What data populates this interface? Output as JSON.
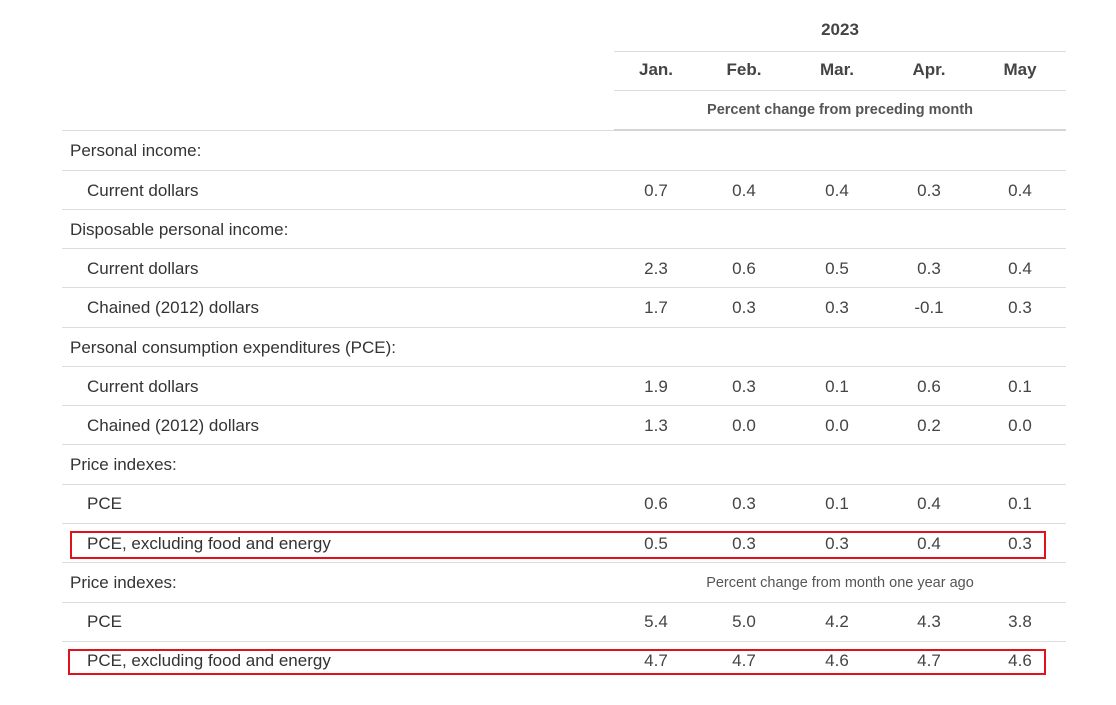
{
  "header": {
    "year": "2023",
    "months": [
      "Jan.",
      "Feb.",
      "Mar.",
      "Apr.",
      "May"
    ],
    "subheading_monthly": "Percent change from preceding month",
    "subheading_yearly": "Percent change from month one year ago"
  },
  "rows": {
    "personal_income": {
      "label": "Personal income:"
    },
    "pi_current": {
      "label": "Current dollars",
      "values": [
        "0.7",
        "0.4",
        "0.4",
        "0.3",
        "0.4"
      ]
    },
    "dpi": {
      "label": "Disposable personal income:"
    },
    "dpi_current": {
      "label": "Current dollars",
      "values": [
        "2.3",
        "0.6",
        "0.5",
        "0.3",
        "0.4"
      ]
    },
    "dpi_chained": {
      "label": "Chained (2012) dollars",
      "values": [
        "1.7",
        "0.3",
        "0.3",
        "-0.1",
        "0.3"
      ]
    },
    "pce": {
      "label": "Personal consumption expenditures (PCE):"
    },
    "pce_current": {
      "label": "Current dollars",
      "values": [
        "1.9",
        "0.3",
        "0.1",
        "0.6",
        "0.1"
      ]
    },
    "pce_chained": {
      "label": "Chained (2012) dollars",
      "values": [
        "1.3",
        "0.0",
        "0.0",
        "0.2",
        "0.0"
      ]
    },
    "price_indexes_1": {
      "label": "Price indexes:"
    },
    "pi1_pce": {
      "label": "PCE",
      "values": [
        "0.6",
        "0.3",
        "0.1",
        "0.4",
        "0.1"
      ]
    },
    "pi1_core": {
      "label": "PCE, excluding food and energy",
      "values": [
        "0.5",
        "0.3",
        "0.3",
        "0.4",
        "0.3"
      ]
    },
    "price_indexes_2": {
      "label": "Price indexes:"
    },
    "pi2_pce": {
      "label": "PCE",
      "values": [
        "5.4",
        "5.0",
        "4.2",
        "4.3",
        "3.8"
      ]
    },
    "pi2_core": {
      "label": "PCE, excluding food and energy",
      "values": [
        "4.7",
        "4.7",
        "4.6",
        "4.7",
        "4.6"
      ]
    }
  },
  "colors": {
    "highlight": "#e0121b",
    "rule": "#dcdcdc",
    "text": "#333333"
  }
}
